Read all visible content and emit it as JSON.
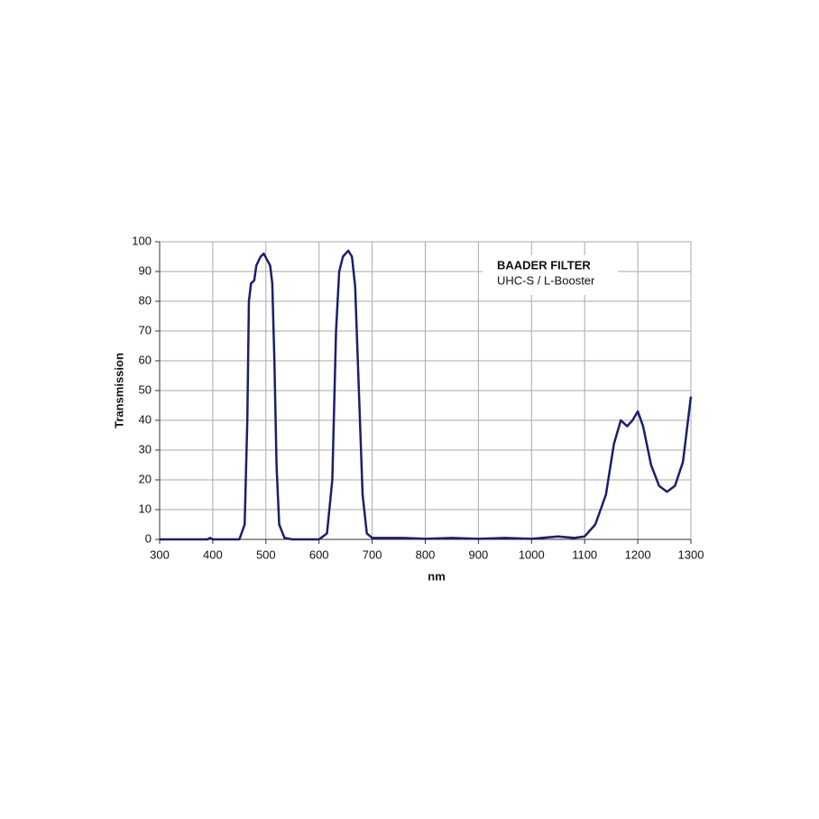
{
  "chart_data": {
    "type": "line",
    "title": "BAADER FILTER",
    "subtitle": "UHC-S / L-Booster",
    "x_label": "nm",
    "y_label": "Transmission",
    "x": [
      300,
      350,
      390,
      395,
      400,
      450,
      460,
      465,
      468,
      472,
      478,
      482,
      490,
      496,
      502,
      508,
      512,
      516,
      520,
      525,
      535,
      550,
      600,
      615,
      625,
      632,
      638,
      645,
      655,
      662,
      668,
      675,
      682,
      690,
      700,
      750,
      760,
      800,
      850,
      900,
      950,
      1000,
      1050,
      1080,
      1100,
      1120,
      1140,
      1155,
      1168,
      1180,
      1190,
      1200,
      1210,
      1225,
      1240,
      1255,
      1270,
      1285,
      1300
    ],
    "values": [
      0,
      0,
      0,
      0.5,
      0,
      0,
      5,
      40,
      80,
      86,
      87,
      92,
      95,
      96,
      94,
      92,
      86,
      60,
      25,
      5,
      0.5,
      0,
      0,
      2,
      20,
      70,
      90,
      95,
      97,
      95,
      85,
      50,
      15,
      2,
      0.5,
      0.5,
      0.5,
      0.2,
      0.5,
      0.2,
      0.5,
      0.2,
      1,
      0.5,
      1,
      5,
      15,
      32,
      40,
      38,
      40,
      43,
      38,
      25,
      18,
      16,
      18,
      26,
      48
    ],
    "color": "#1b1f6b",
    "xlim": [
      300,
      1300
    ],
    "xticks": [
      300,
      400,
      500,
      600,
      700,
      800,
      900,
      1000,
      1100,
      1200,
      1300
    ],
    "ylim": [
      0,
      100
    ],
    "yticks": [
      0,
      10,
      20,
      30,
      40,
      50,
      60,
      70,
      80,
      90,
      100
    ],
    "grid": true
  }
}
